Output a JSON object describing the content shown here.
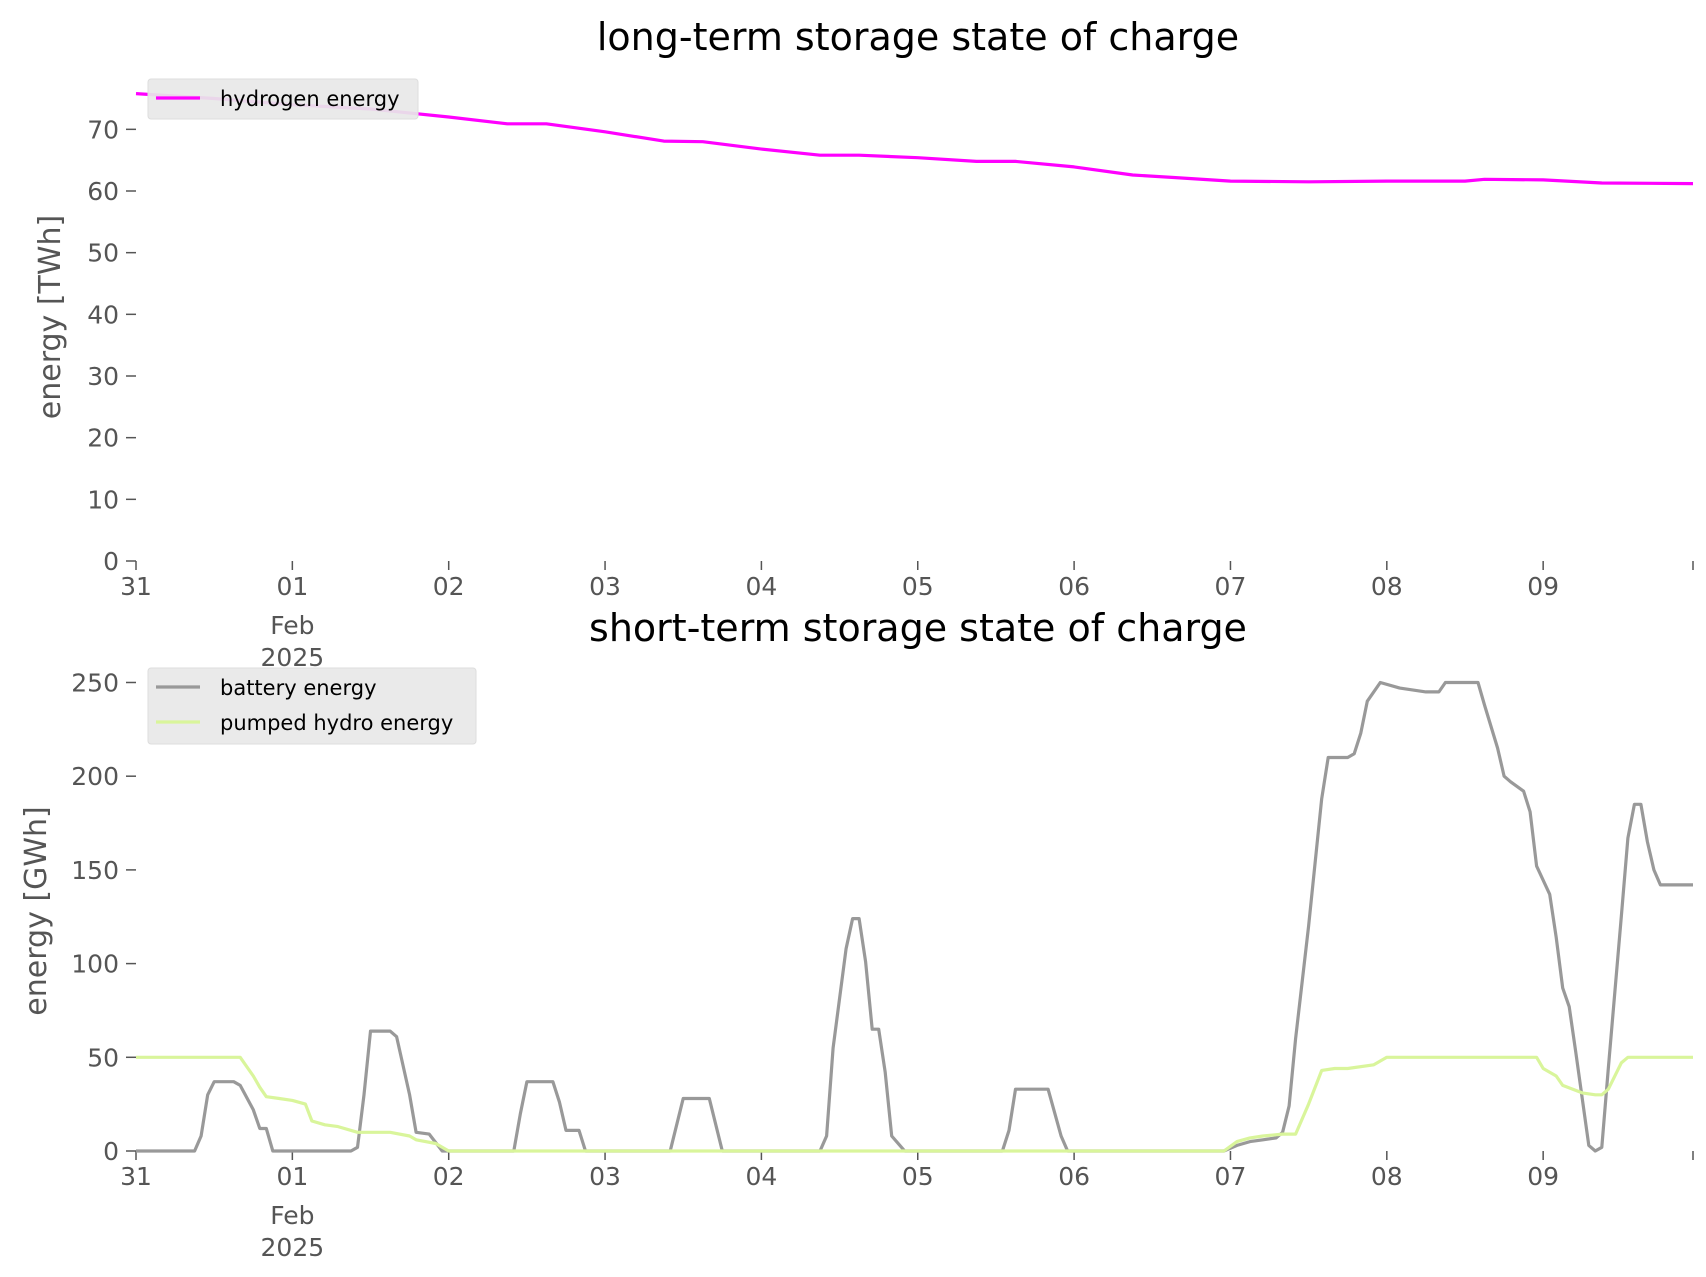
{
  "chart_data": [
    {
      "type": "line",
      "title": "long-term storage state of charge",
      "ylabel": "energy [TWh]",
      "xlabel": "",
      "ylim": [
        0,
        78
      ],
      "xlim": [
        "2025-01-31T00:00",
        "2025-02-09T23:00"
      ],
      "yticks": [
        0,
        10,
        20,
        30,
        40,
        50,
        60,
        70
      ],
      "xticks": [
        "31",
        "01",
        "02",
        "03",
        "04",
        "05",
        "06",
        "07",
        "08",
        "09"
      ],
      "xtick_sublabels": [
        "Feb",
        "2025"
      ],
      "grid": false,
      "legend": "upper left",
      "series": [
        {
          "name": "hydrogen energy",
          "color": "#ff00ff",
          "points": [
            [
              "2025-01-31T00:00",
              75.8
            ],
            [
              "2025-01-31T12:00",
              75.0
            ],
            [
              "2025-02-01T00:00",
              74.0
            ],
            [
              "2025-02-01T12:00",
              73.3
            ],
            [
              "2025-02-02T00:00",
              72.0
            ],
            [
              "2025-02-02T09:00",
              70.9
            ],
            [
              "2025-02-02T15:00",
              70.9
            ],
            [
              "2025-02-03T00:00",
              69.6
            ],
            [
              "2025-02-03T09:00",
              68.1
            ],
            [
              "2025-02-03T15:00",
              68.0
            ],
            [
              "2025-02-04T00:00",
              66.8
            ],
            [
              "2025-02-04T09:00",
              65.8
            ],
            [
              "2025-02-04T15:00",
              65.8
            ],
            [
              "2025-02-05T00:00",
              65.4
            ],
            [
              "2025-02-05T09:00",
              64.8
            ],
            [
              "2025-02-05T15:00",
              64.8
            ],
            [
              "2025-02-06T00:00",
              63.9
            ],
            [
              "2025-02-06T09:00",
              62.6
            ],
            [
              "2025-02-06T15:00",
              62.2
            ],
            [
              "2025-02-07T00:00",
              61.6
            ],
            [
              "2025-02-07T12:00",
              61.5
            ],
            [
              "2025-02-08T00:00",
              61.6
            ],
            [
              "2025-02-08T12:00",
              61.6
            ],
            [
              "2025-02-08T15:00",
              61.9
            ],
            [
              "2025-02-09T00:00",
              61.8
            ],
            [
              "2025-02-09T09:00",
              61.3
            ],
            [
              "2025-02-09T23:00",
              61.2
            ]
          ]
        }
      ]
    },
    {
      "type": "line",
      "title": "short-term storage state of charge",
      "ylabel": "energy [GWh]",
      "xlabel": "",
      "ylim": [
        0,
        262
      ],
      "xlim": [
        "2025-01-31T00:00",
        "2025-02-09T23:00"
      ],
      "yticks": [
        0,
        50,
        100,
        150,
        200,
        250
      ],
      "xticks": [
        "31",
        "01",
        "02",
        "03",
        "04",
        "05",
        "06",
        "07",
        "08",
        "09"
      ],
      "xtick_sublabels": [
        "Feb",
        "2025"
      ],
      "grid": false,
      "legend": "upper left",
      "series": [
        {
          "name": "battery energy",
          "color": "#999999",
          "points": [
            [
              "2025-01-31T00:00",
              0
            ],
            [
              "2025-01-31T09:00",
              0
            ],
            [
              "2025-01-31T10:00",
              8
            ],
            [
              "2025-01-31T11:00",
              30
            ],
            [
              "2025-01-31T12:00",
              37
            ],
            [
              "2025-01-31T15:00",
              37
            ],
            [
              "2025-01-31T16:00",
              35
            ],
            [
              "2025-01-31T18:00",
              22
            ],
            [
              "2025-01-31T19:00",
              12
            ],
            [
              "2025-01-31T20:00",
              12
            ],
            [
              "2025-01-31T21:00",
              0
            ],
            [
              "2025-02-01T09:00",
              0
            ],
            [
              "2025-02-01T10:00",
              2
            ],
            [
              "2025-02-01T11:00",
              30
            ],
            [
              "2025-02-01T12:00",
              64
            ],
            [
              "2025-02-01T15:00",
              64
            ],
            [
              "2025-02-01T16:00",
              61
            ],
            [
              "2025-02-01T18:00",
              30
            ],
            [
              "2025-02-01T19:00",
              10
            ],
            [
              "2025-02-01T21:00",
              9
            ],
            [
              "2025-02-01T23:00",
              0
            ],
            [
              "2025-02-02T10:00",
              0
            ],
            [
              "2025-02-02T11:00",
              20
            ],
            [
              "2025-02-02T12:00",
              37
            ],
            [
              "2025-02-02T16:00",
              37
            ],
            [
              "2025-02-02T17:00",
              26
            ],
            [
              "2025-02-02T18:00",
              11
            ],
            [
              "2025-02-02T20:00",
              11
            ],
            [
              "2025-02-02T21:00",
              0
            ],
            [
              "2025-02-03T10:00",
              0
            ],
            [
              "2025-02-03T12:00",
              28
            ],
            [
              "2025-02-03T16:00",
              28
            ],
            [
              "2025-02-03T18:00",
              0
            ],
            [
              "2025-02-04T09:00",
              0
            ],
            [
              "2025-02-04T10:00",
              8
            ],
            [
              "2025-02-04T11:00",
              55
            ],
            [
              "2025-02-04T13:00",
              108
            ],
            [
              "2025-02-04T14:00",
              124
            ],
            [
              "2025-02-04T15:00",
              124
            ],
            [
              "2025-02-04T16:00",
              101
            ],
            [
              "2025-02-04T17:00",
              65
            ],
            [
              "2025-02-04T18:00",
              65
            ],
            [
              "2025-02-04T19:00",
              42
            ],
            [
              "2025-02-04T20:00",
              8
            ],
            [
              "2025-02-04T22:00",
              0
            ],
            [
              "2025-02-05T13:00",
              0
            ],
            [
              "2025-02-05T14:00",
              11
            ],
            [
              "2025-02-05T15:00",
              33
            ],
            [
              "2025-02-05T18:00",
              33
            ],
            [
              "2025-02-05T20:00",
              33
            ],
            [
              "2025-02-05T22:00",
              8
            ],
            [
              "2025-02-05T23:00",
              0
            ],
            [
              "2025-02-06T23:00",
              0
            ],
            [
              "2025-02-07T01:00",
              3
            ],
            [
              "2025-02-07T03:00",
              5
            ],
            [
              "2025-02-07T05:00",
              6
            ],
            [
              "2025-02-07T07:00",
              7
            ],
            [
              "2025-02-07T08:00",
              10
            ],
            [
              "2025-02-07T09:00",
              24
            ],
            [
              "2025-02-07T10:00",
              60
            ],
            [
              "2025-02-07T12:00",
              120
            ],
            [
              "2025-02-07T14:00",
              188
            ],
            [
              "2025-02-07T15:00",
              210
            ],
            [
              "2025-02-07T18:00",
              210
            ],
            [
              "2025-02-07T19:00",
              212
            ],
            [
              "2025-02-07T20:00",
              223
            ],
            [
              "2025-02-07T21:00",
              240
            ],
            [
              "2025-02-07T23:00",
              250
            ],
            [
              "2025-02-08T02:00",
              247
            ],
            [
              "2025-02-08T06:00",
              245
            ],
            [
              "2025-02-08T08:00",
              245
            ],
            [
              "2025-02-08T09:00",
              250
            ],
            [
              "2025-02-08T14:00",
              250
            ],
            [
              "2025-02-08T15:00",
              238
            ],
            [
              "2025-02-08T17:00",
              215
            ],
            [
              "2025-02-08T18:00",
              200
            ],
            [
              "2025-02-08T19:00",
              197
            ],
            [
              "2025-02-08T21:00",
              192
            ],
            [
              "2025-02-08T22:00",
              181
            ],
            [
              "2025-02-08T23:00",
              152
            ],
            [
              "2025-02-09T01:00",
              137
            ],
            [
              "2025-02-09T02:00",
              114
            ],
            [
              "2025-02-09T03:00",
              87
            ],
            [
              "2025-02-09T04:00",
              77
            ],
            [
              "2025-02-09T05:00",
              53
            ],
            [
              "2025-02-09T07:00",
              3
            ],
            [
              "2025-02-09T08:00",
              0
            ],
            [
              "2025-02-09T09:00",
              2
            ],
            [
              "2025-02-09T10:00",
              44
            ],
            [
              "2025-02-09T12:00",
              125
            ],
            [
              "2025-02-09T13:00",
              167
            ],
            [
              "2025-02-09T14:00",
              185
            ],
            [
              "2025-02-09T15:00",
              185
            ],
            [
              "2025-02-09T16:00",
              165
            ],
            [
              "2025-02-09T17:00",
              150
            ],
            [
              "2025-02-09T18:00",
              142
            ],
            [
              "2025-02-09T23:00",
              142
            ]
          ]
        },
        {
          "name": "pumped hydro energy",
          "color": "#d9f59b",
          "points": [
            [
              "2025-01-31T00:00",
              50
            ],
            [
              "2025-01-31T16:00",
              50
            ],
            [
              "2025-01-31T18:00",
              40
            ],
            [
              "2025-01-31T19:00",
              34
            ],
            [
              "2025-01-31T20:00",
              29
            ],
            [
              "2025-01-31T22:00",
              28
            ],
            [
              "2025-02-01T00:00",
              27
            ],
            [
              "2025-02-01T02:00",
              25
            ],
            [
              "2025-02-01T03:00",
              16
            ],
            [
              "2025-02-01T05:00",
              14
            ],
            [
              "2025-02-01T07:00",
              13
            ],
            [
              "2025-02-01T10:00",
              10
            ],
            [
              "2025-02-01T15:00",
              10
            ],
            [
              "2025-02-01T18:00",
              8
            ],
            [
              "2025-02-01T19:00",
              6
            ],
            [
              "2025-02-01T22:00",
              4
            ],
            [
              "2025-02-02T00:00",
              0
            ],
            [
              "2025-02-06T23:00",
              0
            ],
            [
              "2025-02-07T01:00",
              5
            ],
            [
              "2025-02-07T03:00",
              7
            ],
            [
              "2025-02-07T05:00",
              8
            ],
            [
              "2025-02-07T08:00",
              9
            ],
            [
              "2025-02-07T10:00",
              9
            ],
            [
              "2025-02-07T12:00",
              25
            ],
            [
              "2025-02-07T14:00",
              43
            ],
            [
              "2025-02-07T16:00",
              44
            ],
            [
              "2025-02-07T18:00",
              44
            ],
            [
              "2025-02-07T22:00",
              46
            ],
            [
              "2025-02-08T00:00",
              50
            ],
            [
              "2025-02-08T23:00",
              50
            ],
            [
              "2025-02-09T00:00",
              44
            ],
            [
              "2025-02-09T02:00",
              40
            ],
            [
              "2025-02-09T03:00",
              35
            ],
            [
              "2025-02-09T06:00",
              31
            ],
            [
              "2025-02-09T08:00",
              30
            ],
            [
              "2025-02-09T09:00",
              30
            ],
            [
              "2025-02-09T10:00",
              33
            ],
            [
              "2025-02-09T12:00",
              47
            ],
            [
              "2025-02-09T13:00",
              50
            ],
            [
              "2025-02-09T23:00",
              50
            ]
          ]
        }
      ]
    }
  ]
}
